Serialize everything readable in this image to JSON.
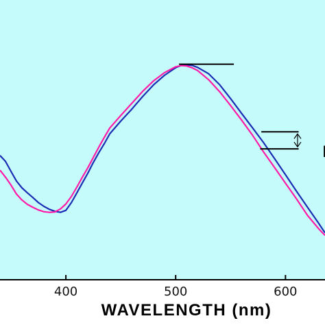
{
  "chart_data": {
    "type": "line",
    "xlabel": "WAVELENGTH (nm)",
    "ylabel": "",
    "title": "",
    "xlim": [
      340,
      636
    ],
    "ylim": [
      0,
      1
    ],
    "x_ticks": [
      400,
      500,
      600
    ],
    "x_tick_labels": [
      "400",
      "500",
      "600"
    ],
    "y_ticks_visible": false,
    "grid": false,
    "legend": "none",
    "plot_background": "#c6fbfb",
    "series": [
      {
        "color": "#1a2db4",
        "x": [
          340,
          345,
          350,
          355,
          360,
          365,
          370,
          375,
          380,
          385,
          390,
          395,
          400,
          405,
          410,
          415,
          420,
          425,
          430,
          435,
          440,
          450,
          460,
          470,
          480,
          490,
          500,
          505,
          510,
          515,
          520,
          530,
          540,
          550,
          560,
          570,
          580,
          590,
          600,
          610,
          620,
          630,
          636
        ],
        "y": [
          0.494,
          0.464,
          0.414,
          0.365,
          0.331,
          0.306,
          0.282,
          0.257,
          0.238,
          0.223,
          0.213,
          0.208,
          0.218,
          0.257,
          0.306,
          0.356,
          0.405,
          0.459,
          0.508,
          0.553,
          0.603,
          0.667,
          0.727,
          0.791,
          0.85,
          0.898,
          0.935,
          0.947,
          0.95,
          0.947,
          0.937,
          0.905,
          0.85,
          0.78,
          0.706,
          0.633,
          0.559,
          0.479,
          0.397,
          0.314,
          0.234,
          0.155,
          0.105
        ]
      },
      {
        "color": "#ff1aa8",
        "x": [
          340,
          345,
          350,
          355,
          360,
          365,
          370,
          375,
          380,
          385,
          390,
          395,
          400,
          405,
          410,
          415,
          420,
          425,
          430,
          435,
          440,
          450,
          460,
          470,
          480,
          490,
          500,
          505,
          510,
          515,
          520,
          530,
          540,
          550,
          560,
          570,
          580,
          590,
          600,
          610,
          620,
          630,
          636
        ],
        "y": [
          0.42,
          0.385,
          0.345,
          0.3,
          0.27,
          0.248,
          0.233,
          0.22,
          0.211,
          0.208,
          0.21,
          0.225,
          0.25,
          0.288,
          0.335,
          0.385,
          0.432,
          0.484,
          0.536,
          0.585,
          0.632,
          0.695,
          0.756,
          0.817,
          0.87,
          0.911,
          0.94,
          0.946,
          0.944,
          0.935,
          0.921,
          0.875,
          0.815,
          0.745,
          0.672,
          0.596,
          0.512,
          0.434,
          0.354,
          0.276,
          0.193,
          0.127,
          0.092
        ]
      }
    ],
    "annotations": [
      {
        "kind": "hline",
        "x": [
          503,
          553
        ],
        "y": 0.953
      },
      {
        "kind": "hline",
        "x": [
          578,
          612
        ],
        "y": 0.613
      },
      {
        "kind": "hline",
        "x": [
          577,
          612
        ],
        "y": 0.527
      },
      {
        "kind": "double-arrow",
        "x": 611,
        "y": [
          0.613,
          0.527
        ]
      }
    ],
    "annotation_label": "E"
  }
}
